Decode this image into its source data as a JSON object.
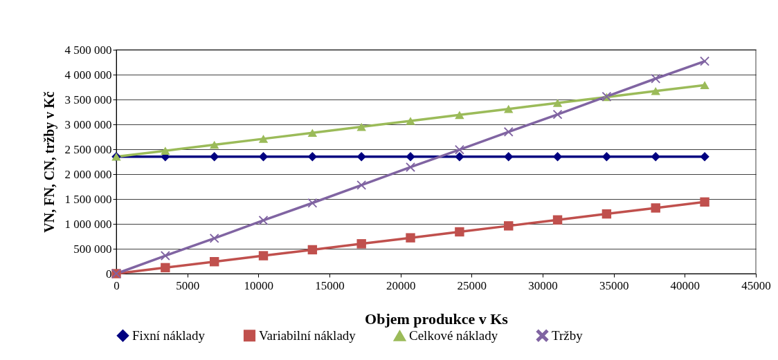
{
  "chart_data": {
    "type": "line",
    "xlabel": "Objem produkce v Ks",
    "ylabel": "VN, FN, CN, tržby v Kč",
    "x": [
      0,
      3450,
      6900,
      10350,
      13800,
      17250,
      20700,
      24150,
      27600,
      31050,
      34500,
      37950,
      41400
    ],
    "series": [
      {
        "name": "Fixní náklady",
        "color": "#000080",
        "marker": "diamond",
        "values": [
          2350000,
          2350000,
          2350000,
          2350000,
          2350000,
          2350000,
          2350000,
          2350000,
          2350000,
          2350000,
          2350000,
          2350000,
          2350000
        ]
      },
      {
        "name": "Variabilní náklady",
        "color": "#c0504d",
        "marker": "square",
        "values": [
          0,
          120000,
          240000,
          360000,
          480000,
          600000,
          720000,
          840000,
          960000,
          1080000,
          1200000,
          1320000,
          1440000
        ]
      },
      {
        "name": "Celkové náklady",
        "color": "#9bbb59",
        "marker": "triangle",
        "values": [
          2350000,
          2470000,
          2590000,
          2710000,
          2830000,
          2950000,
          3070000,
          3190000,
          3310000,
          3430000,
          3550000,
          3670000,
          3790000
        ]
      },
      {
        "name": "Tržby",
        "color": "#8064a2",
        "marker": "cross",
        "values": [
          0,
          360000,
          710000,
          1070000,
          1420000,
          1780000,
          2140000,
          2490000,
          2850000,
          3200000,
          3560000,
          3920000,
          4270000
        ]
      }
    ],
    "xlim": [
      0,
      45000
    ],
    "xticks": [
      0,
      5000,
      10000,
      15000,
      20000,
      25000,
      30000,
      35000,
      40000,
      45000
    ],
    "ylim": [
      0,
      4500000
    ],
    "yticks": [
      0,
      {
        "value": 500000,
        "label": "500 000"
      },
      {
        "value": 1000000,
        "label": "1 000 000"
      },
      {
        "value": 1500000,
        "label": "1 500 000"
      },
      {
        "value": 2000000,
        "label": "2 000 000"
      },
      {
        "value": 2500000,
        "label": "2 500 000"
      },
      {
        "value": 3000000,
        "label": "3 000 000"
      },
      {
        "value": 3500000,
        "label": "3 500 000"
      },
      {
        "value": 4000000,
        "label": "4 000 000"
      },
      {
        "value": 4500000,
        "label": "4 500 000"
      }
    ],
    "grid": "y",
    "legend": "bottom",
    "line_style": "solid"
  }
}
